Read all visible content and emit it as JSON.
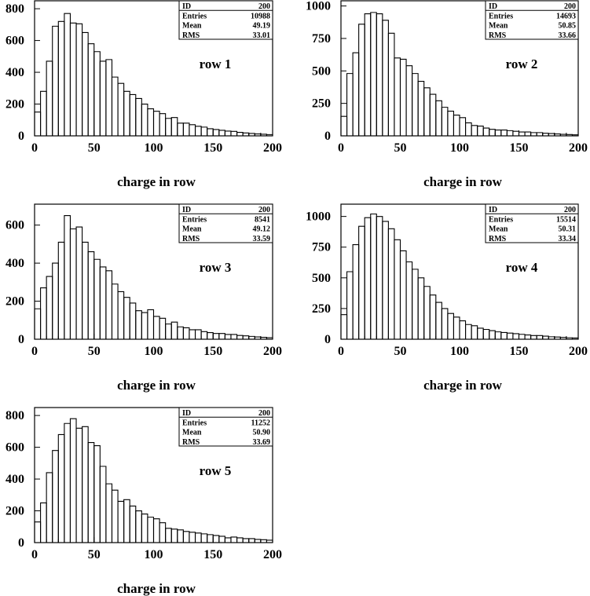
{
  "stat_box_labels": {
    "id": "ID",
    "entries": "Entries",
    "mean": "Mean",
    "rms": "RMS"
  },
  "xlabel": "charge in row",
  "chart_data": [
    {
      "type": "bar",
      "subtype": "histogram",
      "title": "row 1",
      "xlabel": "charge in row",
      "xlim": [
        0,
        200
      ],
      "ylim": [
        0,
        850
      ],
      "x_ticks": [
        0,
        50,
        100,
        150,
        200
      ],
      "y_ticks": [
        0,
        200,
        400,
        600,
        800
      ],
      "stats": {
        "ID": "200",
        "Entries": "10988",
        "Mean": "49.19",
        "RMS": "33.01"
      },
      "bin_width": 5,
      "values": [
        150,
        280,
        470,
        690,
        720,
        770,
        710,
        705,
        650,
        580,
        530,
        470,
        480,
        370,
        330,
        280,
        260,
        235,
        200,
        170,
        155,
        140,
        110,
        115,
        80,
        80,
        70,
        60,
        55,
        45,
        40,
        35,
        30,
        28,
        22,
        18,
        15,
        12,
        10,
        8
      ]
    },
    {
      "type": "bar",
      "subtype": "histogram",
      "title": "row 2",
      "xlabel": "charge in row",
      "xlim": [
        0,
        200
      ],
      "ylim": [
        0,
        1040
      ],
      "x_ticks": [
        0,
        50,
        100,
        150,
        200
      ],
      "y_ticks": [
        0,
        250,
        500,
        750,
        1000
      ],
      "stats": {
        "ID": "200",
        "Entries": "14693",
        "Mean": "50.85",
        "RMS": "33.66"
      },
      "bin_width": 5,
      "values": [
        150,
        480,
        640,
        860,
        940,
        950,
        940,
        890,
        790,
        600,
        590,
        540,
        480,
        420,
        370,
        320,
        270,
        220,
        190,
        160,
        140,
        100,
        80,
        75,
        60,
        50,
        45,
        45,
        40,
        35,
        30,
        30,
        25,
        25,
        20,
        18,
        15,
        12,
        10,
        8
      ]
    },
    {
      "type": "bar",
      "subtype": "histogram",
      "title": "row 3",
      "xlabel": "charge in row",
      "xlim": [
        0,
        200
      ],
      "ylim": [
        0,
        710
      ],
      "x_ticks": [
        0,
        50,
        100,
        150,
        200
      ],
      "y_ticks": [
        0,
        200,
        400,
        600
      ],
      "stats": {
        "ID": "200",
        "Entries": "8541",
        "Mean": "49.12",
        "RMS": "33.59"
      },
      "bin_width": 5,
      "values": [
        160,
        270,
        330,
        400,
        510,
        650,
        580,
        590,
        510,
        460,
        420,
        380,
        360,
        290,
        250,
        220,
        190,
        150,
        140,
        155,
        120,
        110,
        80,
        90,
        65,
        60,
        50,
        50,
        40,
        35,
        30,
        30,
        25,
        25,
        20,
        18,
        15,
        12,
        10,
        8
      ]
    },
    {
      "type": "bar",
      "subtype": "histogram",
      "title": "row 4",
      "xlabel": "charge in row",
      "xlim": [
        0,
        200
      ],
      "ylim": [
        0,
        1100
      ],
      "x_ticks": [
        0,
        50,
        100,
        150,
        200
      ],
      "y_ticks": [
        0,
        250,
        500,
        750,
        1000
      ],
      "stats": {
        "ID": "200",
        "Entries": "15514",
        "Mean": "50.31",
        "RMS": "33.34"
      },
      "bin_width": 5,
      "values": [
        200,
        550,
        770,
        920,
        990,
        1020,
        1000,
        960,
        900,
        810,
        720,
        630,
        570,
        500,
        430,
        360,
        300,
        250,
        210,
        180,
        150,
        120,
        110,
        90,
        80,
        70,
        60,
        55,
        50,
        45,
        40,
        35,
        30,
        30,
        25,
        20,
        18,
        15,
        12,
        10
      ]
    },
    {
      "type": "bar",
      "subtype": "histogram",
      "title": "row 5",
      "xlabel": "charge in row",
      "xlim": [
        0,
        200
      ],
      "ylim": [
        0,
        850
      ],
      "x_ticks": [
        0,
        50,
        100,
        150,
        200
      ],
      "y_ticks": [
        0,
        200,
        400,
        600,
        800
      ],
      "stats": {
        "ID": "200",
        "Entries": "11252",
        "Mean": "50.90",
        "RMS": "33.69"
      },
      "bin_width": 5,
      "values": [
        130,
        250,
        440,
        580,
        680,
        750,
        780,
        720,
        730,
        630,
        610,
        480,
        370,
        330,
        260,
        270,
        230,
        200,
        180,
        160,
        150,
        125,
        90,
        85,
        80,
        70,
        65,
        60,
        55,
        50,
        45,
        40,
        30,
        35,
        30,
        25,
        25,
        20,
        18,
        15
      ]
    }
  ]
}
